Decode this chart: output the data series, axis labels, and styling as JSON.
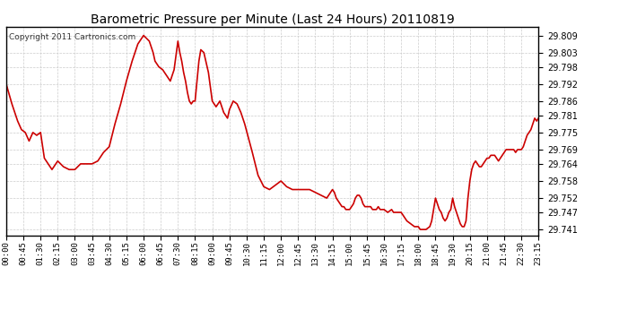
{
  "title": "Barometric Pressure per Minute (Last 24 Hours) 20110819",
  "copyright": "Copyright 2011 Cartronics.com",
  "line_color": "#cc0000",
  "bg_color": "#ffffff",
  "plot_bg_color": "#ffffff",
  "grid_color": "#cccccc",
  "yticks": [
    29.741,
    29.747,
    29.752,
    29.758,
    29.764,
    29.769,
    29.775,
    29.781,
    29.786,
    29.792,
    29.798,
    29.803,
    29.809
  ],
  "ylim": [
    29.739,
    29.812
  ],
  "xtick_labels": [
    "00:00",
    "00:45",
    "01:30",
    "02:15",
    "03:00",
    "03:45",
    "04:30",
    "05:15",
    "06:00",
    "06:45",
    "07:30",
    "08:15",
    "09:00",
    "09:45",
    "10:30",
    "11:15",
    "12:00",
    "12:45",
    "13:30",
    "14:15",
    "15:00",
    "15:45",
    "16:30",
    "17:15",
    "18:00",
    "18:45",
    "19:30",
    "20:15",
    "21:00",
    "21:45",
    "22:30",
    "23:15"
  ],
  "key_points": [
    [
      0,
      29.792
    ],
    [
      15,
      29.785
    ],
    [
      30,
      29.779
    ],
    [
      40,
      29.776
    ],
    [
      50,
      29.775
    ],
    [
      60,
      29.772
    ],
    [
      70,
      29.775
    ],
    [
      80,
      29.774
    ],
    [
      90,
      29.775
    ],
    [
      100,
      29.766
    ],
    [
      110,
      29.764
    ],
    [
      120,
      29.762
    ],
    [
      135,
      29.765
    ],
    [
      150,
      29.763
    ],
    [
      165,
      29.762
    ],
    [
      180,
      29.762
    ],
    [
      195,
      29.764
    ],
    [
      210,
      29.764
    ],
    [
      225,
      29.764
    ],
    [
      240,
      29.765
    ],
    [
      255,
      29.768
    ],
    [
      270,
      29.77
    ],
    [
      285,
      29.778
    ],
    [
      300,
      29.785
    ],
    [
      315,
      29.793
    ],
    [
      330,
      29.8
    ],
    [
      345,
      29.806
    ],
    [
      360,
      29.809
    ],
    [
      375,
      29.807
    ],
    [
      385,
      29.803
    ],
    [
      390,
      29.8
    ],
    [
      400,
      29.798
    ],
    [
      410,
      29.797
    ],
    [
      420,
      29.795
    ],
    [
      430,
      29.793
    ],
    [
      440,
      29.797
    ],
    [
      450,
      29.807
    ],
    [
      455,
      29.803
    ],
    [
      460,
      29.8
    ],
    [
      465,
      29.796
    ],
    [
      470,
      29.793
    ],
    [
      475,
      29.789
    ],
    [
      480,
      29.786
    ],
    [
      485,
      29.785
    ],
    [
      490,
      29.786
    ],
    [
      495,
      29.786
    ],
    [
      500,
      29.793
    ],
    [
      505,
      29.8
    ],
    [
      510,
      29.804
    ],
    [
      518,
      29.803
    ],
    [
      525,
      29.799
    ],
    [
      530,
      29.796
    ],
    [
      540,
      29.786
    ],
    [
      550,
      29.784
    ],
    [
      560,
      29.786
    ],
    [
      570,
      29.782
    ],
    [
      580,
      29.78
    ],
    [
      585,
      29.783
    ],
    [
      595,
      29.786
    ],
    [
      605,
      29.785
    ],
    [
      615,
      29.782
    ],
    [
      625,
      29.778
    ],
    [
      635,
      29.773
    ],
    [
      645,
      29.768
    ],
    [
      660,
      29.76
    ],
    [
      675,
      29.756
    ],
    [
      690,
      29.755
    ],
    [
      700,
      29.756
    ],
    [
      710,
      29.757
    ],
    [
      720,
      29.758
    ],
    [
      735,
      29.756
    ],
    [
      750,
      29.755
    ],
    [
      765,
      29.755
    ],
    [
      780,
      29.755
    ],
    [
      795,
      29.755
    ],
    [
      810,
      29.754
    ],
    [
      825,
      29.753
    ],
    [
      840,
      29.752
    ],
    [
      855,
      29.755
    ],
    [
      860,
      29.754
    ],
    [
      865,
      29.752
    ],
    [
      870,
      29.751
    ],
    [
      875,
      29.75
    ],
    [
      880,
      29.749
    ],
    [
      885,
      29.749
    ],
    [
      890,
      29.748
    ],
    [
      895,
      29.748
    ],
    [
      900,
      29.748
    ],
    [
      910,
      29.75
    ],
    [
      915,
      29.752
    ],
    [
      920,
      29.753
    ],
    [
      925,
      29.753
    ],
    [
      930,
      29.752
    ],
    [
      935,
      29.75
    ],
    [
      940,
      29.749
    ],
    [
      945,
      29.749
    ],
    [
      955,
      29.749
    ],
    [
      960,
      29.748
    ],
    [
      970,
      29.748
    ],
    [
      975,
      29.749
    ],
    [
      980,
      29.748
    ],
    [
      990,
      29.748
    ],
    [
      1000,
      29.747
    ],
    [
      1010,
      29.748
    ],
    [
      1015,
      29.747
    ],
    [
      1020,
      29.747
    ],
    [
      1030,
      29.747
    ],
    [
      1035,
      29.747
    ],
    [
      1040,
      29.746
    ],
    [
      1050,
      29.744
    ],
    [
      1060,
      29.743
    ],
    [
      1070,
      29.742
    ],
    [
      1080,
      29.742
    ],
    [
      1085,
      29.741
    ],
    [
      1090,
      29.741
    ],
    [
      1095,
      29.741
    ],
    [
      1100,
      29.741
    ],
    [
      1110,
      29.742
    ],
    [
      1115,
      29.744
    ],
    [
      1120,
      29.748
    ],
    [
      1125,
      29.752
    ],
    [
      1130,
      29.75
    ],
    [
      1135,
      29.748
    ],
    [
      1140,
      29.747
    ],
    [
      1145,
      29.745
    ],
    [
      1150,
      29.744
    ],
    [
      1155,
      29.745
    ],
    [
      1160,
      29.747
    ],
    [
      1165,
      29.748
    ],
    [
      1170,
      29.752
    ],
    [
      1175,
      29.749
    ],
    [
      1180,
      29.747
    ],
    [
      1185,
      29.745
    ],
    [
      1190,
      29.743
    ],
    [
      1195,
      29.742
    ],
    [
      1200,
      29.742
    ],
    [
      1205,
      29.744
    ],
    [
      1210,
      29.752
    ],
    [
      1215,
      29.758
    ],
    [
      1220,
      29.762
    ],
    [
      1225,
      29.764
    ],
    [
      1230,
      29.765
    ],
    [
      1235,
      29.764
    ],
    [
      1240,
      29.763
    ],
    [
      1245,
      29.763
    ],
    [
      1250,
      29.764
    ],
    [
      1255,
      29.765
    ],
    [
      1260,
      29.766
    ],
    [
      1265,
      29.766
    ],
    [
      1270,
      29.767
    ],
    [
      1275,
      29.767
    ],
    [
      1280,
      29.767
    ],
    [
      1285,
      29.766
    ],
    [
      1290,
      29.765
    ],
    [
      1295,
      29.766
    ],
    [
      1300,
      29.767
    ],
    [
      1305,
      29.768
    ],
    [
      1310,
      29.769
    ],
    [
      1315,
      29.769
    ],
    [
      1320,
      29.769
    ],
    [
      1325,
      29.769
    ],
    [
      1330,
      29.769
    ],
    [
      1335,
      29.768
    ],
    [
      1340,
      29.769
    ],
    [
      1350,
      29.769
    ],
    [
      1355,
      29.77
    ],
    [
      1360,
      29.772
    ],
    [
      1365,
      29.774
    ],
    [
      1370,
      29.775
    ],
    [
      1375,
      29.776
    ],
    [
      1380,
      29.778
    ],
    [
      1385,
      29.78
    ],
    [
      1390,
      29.779
    ],
    [
      1395,
      29.78
    ]
  ]
}
